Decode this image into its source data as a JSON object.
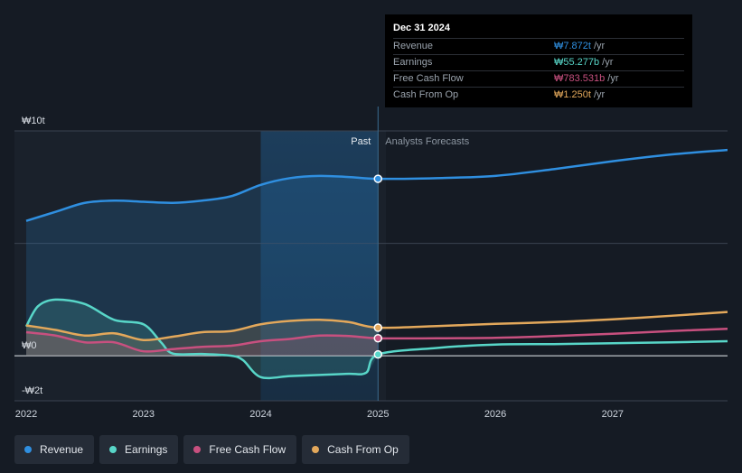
{
  "colors": {
    "revenue": "#2f8fe0",
    "earnings": "#58d6c8",
    "free_cash_flow": "#c8507f",
    "cash_from_op": "#e3a85b",
    "background": "#151b24",
    "past_highlight": "#1c3a55"
  },
  "tooltip": {
    "date": "Dec 31 2024",
    "rows": [
      {
        "label": "Revenue",
        "value": "₩7.872t",
        "unit": "/yr"
      },
      {
        "label": "Earnings",
        "value": "₩55.277b",
        "unit": "/yr"
      },
      {
        "label": "Free Cash Flow",
        "value": "₩783.531b",
        "unit": "/yr"
      },
      {
        "label": "Cash From Op",
        "value": "₩1.250t",
        "unit": "/yr"
      }
    ]
  },
  "legend": [
    {
      "label": "Revenue"
    },
    {
      "label": "Earnings"
    },
    {
      "label": "Free Cash Flow"
    },
    {
      "label": "Cash From Op"
    }
  ],
  "chart_data": {
    "type": "line",
    "y_unit": "KRW trillions",
    "ylim": [
      -2,
      10
    ],
    "xlim": [
      2021.9,
      2027.98
    ],
    "x_ticks": [
      2022,
      2023,
      2024,
      2025,
      2026,
      2027
    ],
    "x_tick_labels": [
      "2022",
      "2023",
      "2024",
      "2025",
      "2026",
      "2027"
    ],
    "y_axis_labels": [
      {
        "value": 10,
        "label": "₩10t"
      },
      {
        "value": 0,
        "label": "₩0"
      },
      {
        "value": -2,
        "label": "-₩2t"
      }
    ],
    "gridlines": [
      10,
      5,
      0,
      -2
    ],
    "past_label": "Past",
    "forecast_label": "Analysts Forecasts",
    "forecast_start": 2025.0,
    "highlight_range": [
      2024.0,
      2025.0
    ],
    "series": [
      {
        "name": "Revenue",
        "key": "revenue",
        "x": [
          2022.0,
          2022.25,
          2022.5,
          2022.75,
          2023.0,
          2023.25,
          2023.5,
          2023.75,
          2024.0,
          2024.25,
          2024.5,
          2024.75,
          2025.0,
          2025.5,
          2026.0,
          2026.5,
          2027.0,
          2027.5,
          2027.98
        ],
        "y": [
          6.0,
          6.4,
          6.8,
          6.9,
          6.85,
          6.8,
          6.9,
          7.1,
          7.6,
          7.9,
          8.0,
          7.95,
          7.87,
          7.9,
          8.0,
          8.3,
          8.65,
          8.95,
          9.15
        ]
      },
      {
        "name": "Earnings",
        "key": "earnings",
        "x": [
          2022.0,
          2022.1,
          2022.25,
          2022.5,
          2022.75,
          2023.0,
          2023.15,
          2023.25,
          2023.5,
          2023.75,
          2023.85,
          2024.0,
          2024.25,
          2024.5,
          2024.75,
          2024.9,
          2025.0,
          2025.5,
          2026.0,
          2026.5,
          2027.0,
          2027.5,
          2027.98
        ],
        "y": [
          1.3,
          2.2,
          2.5,
          2.3,
          1.6,
          1.4,
          0.6,
          0.1,
          0.08,
          0.0,
          -0.2,
          -0.95,
          -0.9,
          -0.85,
          -0.8,
          -0.75,
          0.06,
          0.35,
          0.5,
          0.52,
          0.56,
          0.6,
          0.65
        ]
      },
      {
        "name": "Free Cash Flow",
        "key": "free_cash_flow",
        "x": [
          2022.0,
          2022.25,
          2022.5,
          2022.75,
          2023.0,
          2023.25,
          2023.5,
          2023.75,
          2024.0,
          2024.25,
          2024.5,
          2024.75,
          2025.0,
          2025.5,
          2026.0,
          2026.5,
          2027.0,
          2027.5,
          2027.98
        ],
        "y": [
          1.05,
          0.9,
          0.6,
          0.6,
          0.2,
          0.3,
          0.4,
          0.45,
          0.65,
          0.75,
          0.9,
          0.88,
          0.78,
          0.78,
          0.8,
          0.88,
          0.98,
          1.1,
          1.2
        ]
      },
      {
        "name": "Cash From Op",
        "key": "cash_from_op",
        "x": [
          2022.0,
          2022.25,
          2022.5,
          2022.75,
          2023.0,
          2023.25,
          2023.5,
          2023.75,
          2024.0,
          2024.25,
          2024.5,
          2024.75,
          2025.0,
          2025.5,
          2026.0,
          2026.5,
          2027.0,
          2027.5,
          2027.98
        ],
        "y": [
          1.35,
          1.15,
          0.9,
          1.0,
          0.7,
          0.85,
          1.05,
          1.1,
          1.4,
          1.55,
          1.6,
          1.5,
          1.25,
          1.32,
          1.42,
          1.5,
          1.62,
          1.78,
          1.95
        ]
      }
    ]
  }
}
